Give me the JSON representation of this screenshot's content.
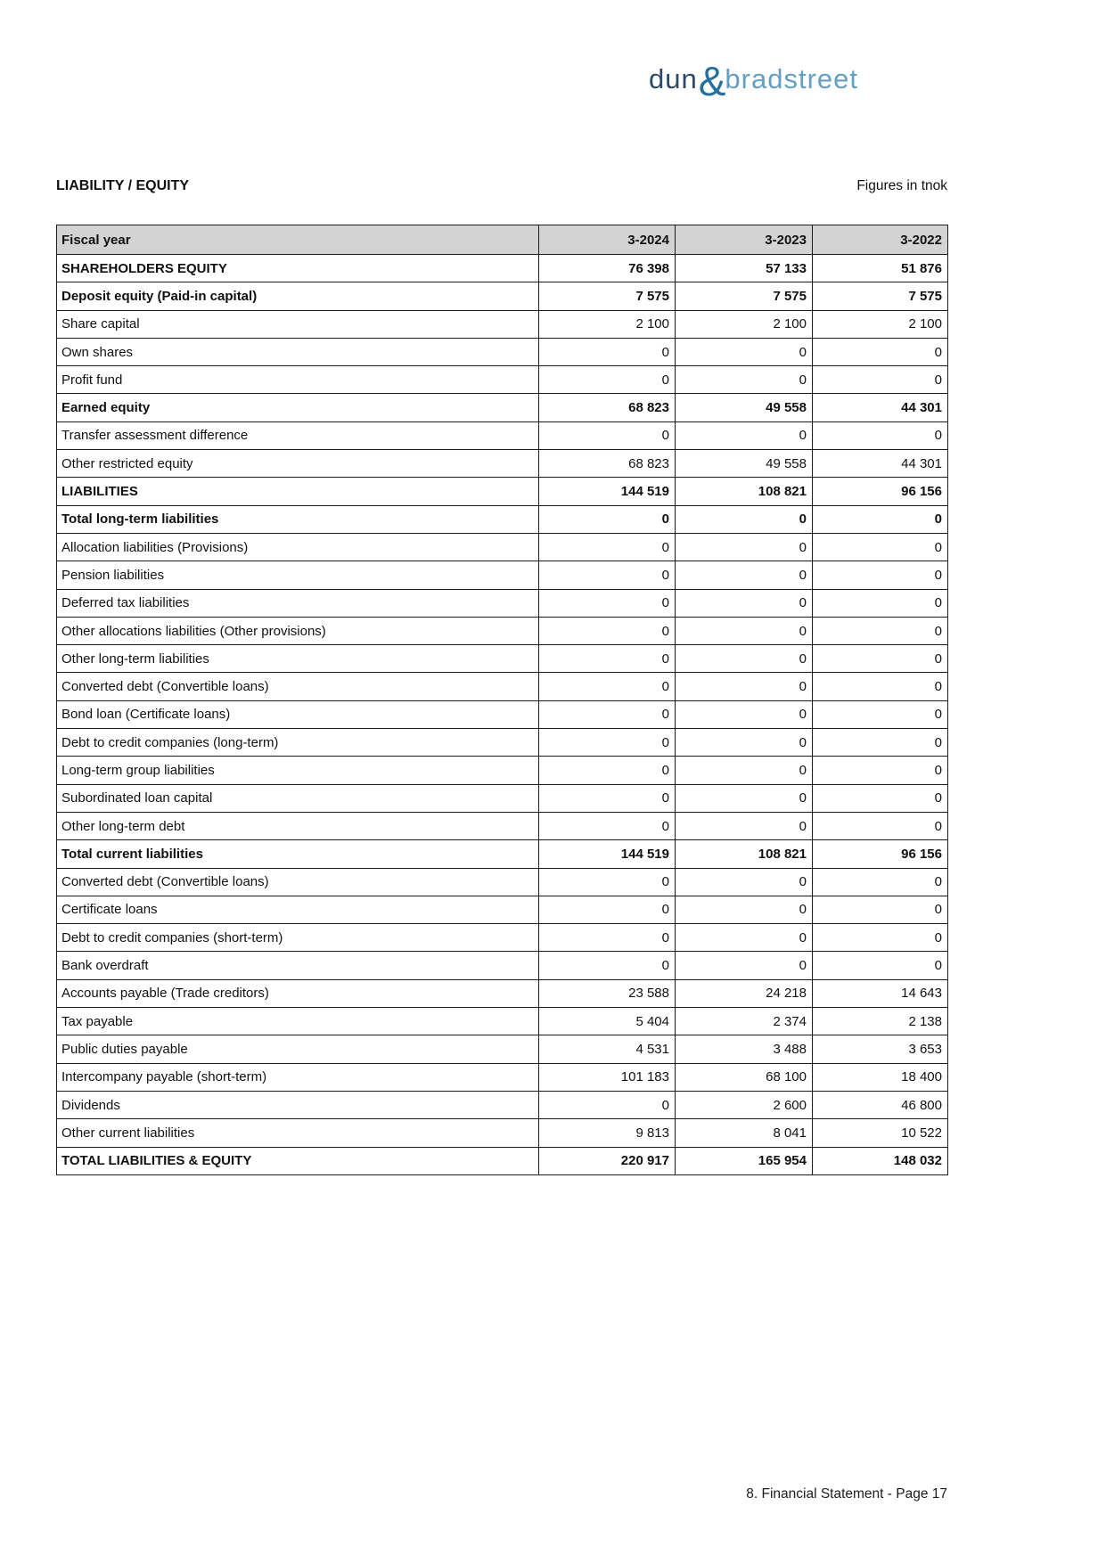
{
  "logo": {
    "part1": "dun",
    "ampersand": "&",
    "part2": "bradstreet",
    "color_part1": "#2b4a66",
    "color_ampersand": "#246f9e",
    "color_part2": "#639fc6"
  },
  "header": {
    "title": "LIABILITY / EQUITY",
    "note": "Figures in tnok"
  },
  "table": {
    "header_bg": "#d3d3d3",
    "border_color": "#1c1c1c",
    "columns": [
      "Fiscal year",
      "3-2024",
      "3-2023",
      "3-2022"
    ],
    "rows": [
      {
        "label": "SHAREHOLDERS EQUITY",
        "values": [
          "76 398",
          "57 133",
          "51 876"
        ],
        "bold": true
      },
      {
        "label": "Deposit equity (Paid-in capital)",
        "values": [
          "7 575",
          "7 575",
          "7 575"
        ],
        "bold": true
      },
      {
        "label": "Share capital",
        "values": [
          "2 100",
          "2 100",
          "2 100"
        ],
        "bold": false
      },
      {
        "label": "Own shares",
        "values": [
          "0",
          "0",
          "0"
        ],
        "bold": false
      },
      {
        "label": "Profit fund",
        "values": [
          "0",
          "0",
          "0"
        ],
        "bold": false
      },
      {
        "label": "Earned equity",
        "values": [
          "68 823",
          "49 558",
          "44 301"
        ],
        "bold": true
      },
      {
        "label": "Transfer assessment difference",
        "values": [
          "0",
          "0",
          "0"
        ],
        "bold": false
      },
      {
        "label": "Other restricted equity",
        "values": [
          "68 823",
          "49 558",
          "44 301"
        ],
        "bold": false
      },
      {
        "label": "LIABILITIES",
        "values": [
          "144 519",
          "108 821",
          "96 156"
        ],
        "bold": true
      },
      {
        "label": "Total long-term liabilities",
        "values": [
          "0",
          "0",
          "0"
        ],
        "bold": true
      },
      {
        "label": "Allocation liabilities (Provisions)",
        "values": [
          "0",
          "0",
          "0"
        ],
        "bold": false
      },
      {
        "label": "Pension liabilities",
        "values": [
          "0",
          "0",
          "0"
        ],
        "bold": false
      },
      {
        "label": "Deferred tax liabilities",
        "values": [
          "0",
          "0",
          "0"
        ],
        "bold": false
      },
      {
        "label": "Other allocations liabilities (Other provisions)",
        "values": [
          "0",
          "0",
          "0"
        ],
        "bold": false
      },
      {
        "label": "Other long-term liabilities",
        "values": [
          "0",
          "0",
          "0"
        ],
        "bold": false
      },
      {
        "label": "Converted debt (Convertible loans)",
        "values": [
          "0",
          "0",
          "0"
        ],
        "bold": false
      },
      {
        "label": "Bond loan (Certificate loans)",
        "values": [
          "0",
          "0",
          "0"
        ],
        "bold": false
      },
      {
        "label": "Debt to credit companies (long-term)",
        "values": [
          "0",
          "0",
          "0"
        ],
        "bold": false
      },
      {
        "label": "Long-term group liabilities",
        "values": [
          "0",
          "0",
          "0"
        ],
        "bold": false
      },
      {
        "label": "Subordinated loan capital",
        "values": [
          "0",
          "0",
          "0"
        ],
        "bold": false
      },
      {
        "label": "Other long-term debt",
        "values": [
          "0",
          "0",
          "0"
        ],
        "bold": false
      },
      {
        "label": "Total current liabilities",
        "values": [
          "144 519",
          "108 821",
          "96 156"
        ],
        "bold": true
      },
      {
        "label": "Converted debt (Convertible loans)",
        "values": [
          "0",
          "0",
          "0"
        ],
        "bold": false
      },
      {
        "label": "Certificate loans",
        "values": [
          "0",
          "0",
          "0"
        ],
        "bold": false
      },
      {
        "label": "Debt to credit companies (short-term)",
        "values": [
          "0",
          "0",
          "0"
        ],
        "bold": false
      },
      {
        "label": "Bank overdraft",
        "values": [
          "0",
          "0",
          "0"
        ],
        "bold": false
      },
      {
        "label": "Accounts payable (Trade creditors)",
        "values": [
          "23 588",
          "24 218",
          "14 643"
        ],
        "bold": false
      },
      {
        "label": "Tax payable",
        "values": [
          "5 404",
          "2 374",
          "2 138"
        ],
        "bold": false
      },
      {
        "label": "Public duties payable",
        "values": [
          "4 531",
          "3 488",
          "3 653"
        ],
        "bold": false
      },
      {
        "label": "Intercompany payable (short-term)",
        "values": [
          "101 183",
          "68 100",
          "18 400"
        ],
        "bold": false
      },
      {
        "label": "Dividends",
        "values": [
          "0",
          "2 600",
          "46 800"
        ],
        "bold": false
      },
      {
        "label": "Other current liabilities",
        "values": [
          "9 813",
          "8 041",
          "10 522"
        ],
        "bold": false
      },
      {
        "label": "TOTAL LIABILITIES & EQUITY",
        "values": [
          "220 917",
          "165 954",
          "148 032"
        ],
        "bold": true
      }
    ]
  },
  "footer": {
    "text": "8. Financial Statement - Page 17"
  }
}
